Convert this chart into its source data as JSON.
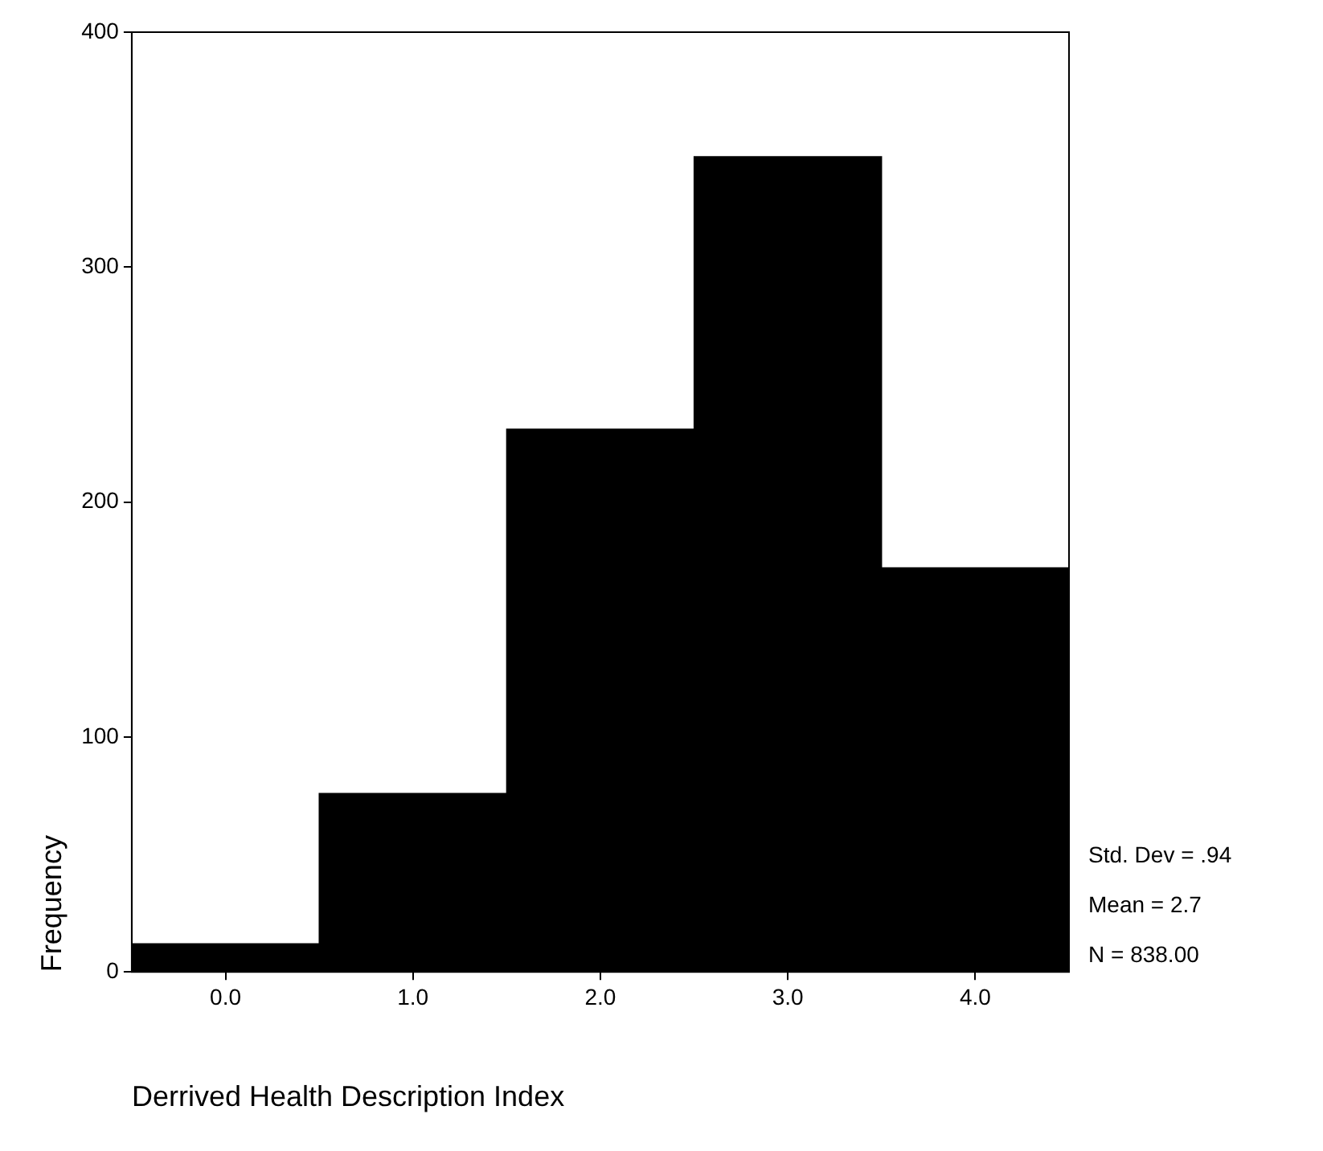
{
  "chart_data": {
    "type": "bar",
    "xlabel": "Derrived Health Description Index",
    "ylabel": "Frequency",
    "categories": [
      "0.0",
      "1.0",
      "2.0",
      "3.0",
      "4.0"
    ],
    "values": [
      12,
      76,
      231,
      347,
      172
    ],
    "color": "#000000",
    "ylim": [
      0,
      400
    ],
    "yticks": [
      0,
      100,
      200,
      300,
      400
    ],
    "grid": false,
    "legend": false,
    "annotations": [
      "Std. Dev = .94",
      "Mean = 2.7",
      "N = 838.00"
    ]
  }
}
